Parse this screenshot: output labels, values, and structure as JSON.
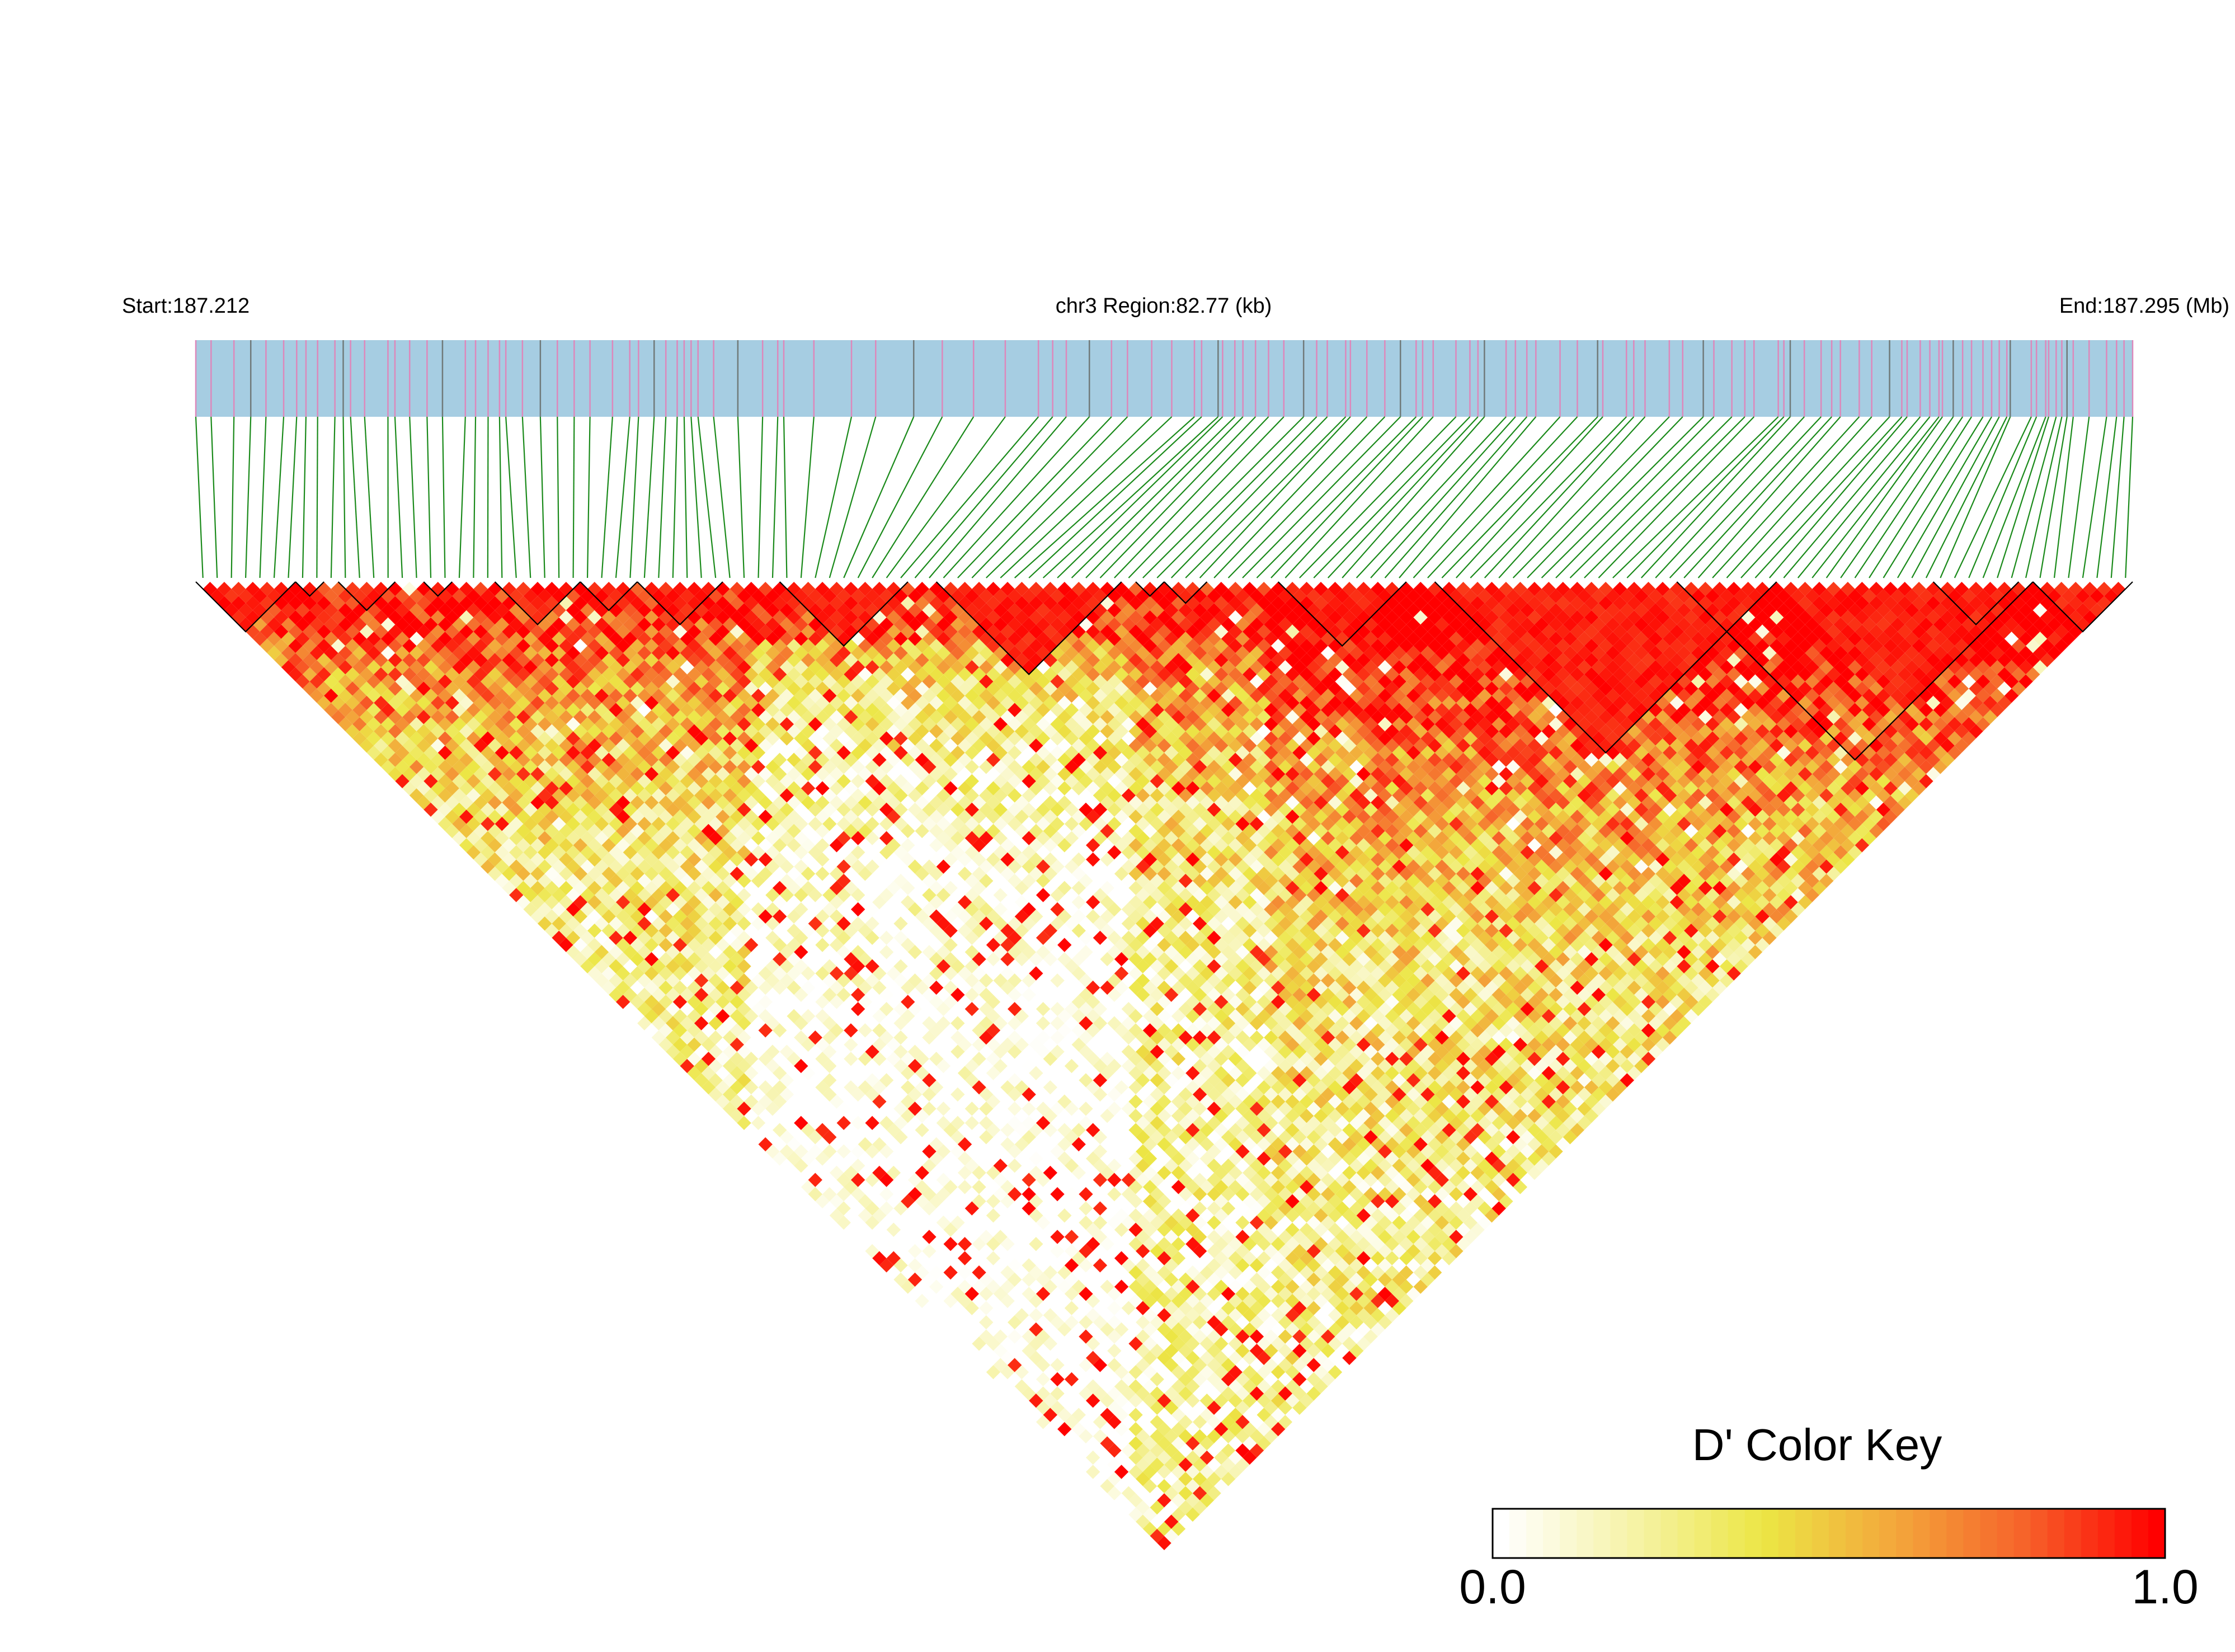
{
  "chart_data": {
    "type": "heatmap",
    "subtype": "linkage-disequilibrium triangle",
    "header": {
      "start_label": "Start:187.212",
      "region_label": "chr3 Region:82.77 (kb)",
      "end_label": "End:187.295 (Mb)"
    },
    "region": {
      "chromosome": "chr3",
      "start_mb": 187.212,
      "end_mb": 187.295,
      "length_kb": 82.77
    },
    "snp_count": 136,
    "colors": {
      "track_bg": "#a6cde2",
      "snp_tick": "#dd88bb",
      "snp_tick_alt": "#707a7a",
      "connector": "#1a8a1a",
      "high": "#ff0000",
      "mid": "#eee84a",
      "low": "#ffffff"
    },
    "blocks": [
      {
        "from": 0,
        "to": 6
      },
      {
        "from": 7,
        "to": 8
      },
      {
        "from": 10,
        "to": 13
      },
      {
        "from": 16,
        "to": 17
      },
      {
        "from": 21,
        "to": 26
      },
      {
        "from": 27,
        "to": 30
      },
      {
        "from": 31,
        "to": 36
      },
      {
        "from": 41,
        "to": 49
      },
      {
        "from": 52,
        "to": 64
      },
      {
        "from": 66,
        "to": 67
      },
      {
        "from": 68,
        "to": 70
      },
      {
        "from": 76,
        "to": 84
      },
      {
        "from": 87,
        "to": 110
      },
      {
        "from": 104,
        "to": 128
      },
      {
        "from": 122,
        "to": 127
      },
      {
        "from": 129,
        "to": 135
      }
    ],
    "color_key": {
      "title": "D' Color Key",
      "min_label": "0.0",
      "max_label": "1.0",
      "min": 0.0,
      "max": 1.0,
      "stops": [
        "#ffffff",
        "#f6f3a8",
        "#ece645",
        "#f3a73b",
        "#f6622a",
        "#ff0000"
      ]
    }
  }
}
